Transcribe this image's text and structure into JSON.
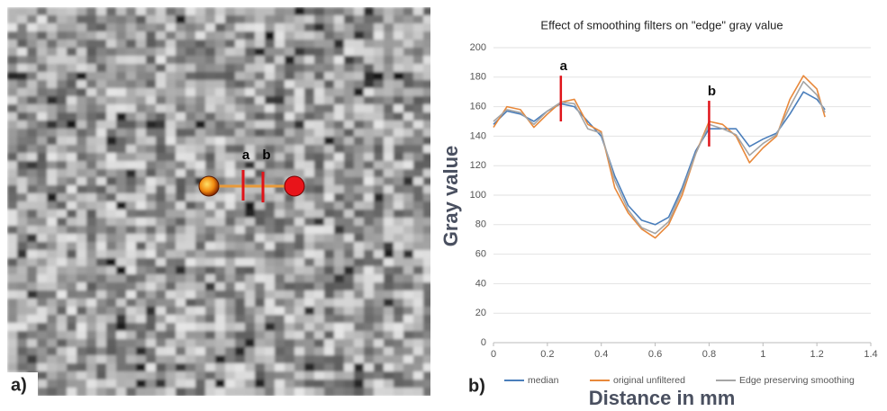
{
  "image": {
    "panel_label": "a)",
    "markers": [
      "a",
      "b"
    ]
  },
  "chart_data": {
    "type": "line",
    "panel_label": "b)",
    "title": "Effect of smoothing filters on \"edge\" gray value",
    "x_label": "Distance in mm",
    "y_label": "Gray value",
    "x": [
      0,
      0.05,
      0.1,
      0.15,
      0.2,
      0.25,
      0.3,
      0.35,
      0.4,
      0.45,
      0.5,
      0.55,
      0.6,
      0.65,
      0.7,
      0.75,
      0.8,
      0.85,
      0.9,
      0.95,
      1.0,
      1.05,
      1.1,
      1.15,
      1.2,
      1.23
    ],
    "series": [
      {
        "name": "median",
        "color": "#4a7ebb",
        "values": [
          148,
          157,
          155,
          150,
          157,
          162,
          160,
          150,
          140,
          113,
          93,
          83,
          80,
          85,
          105,
          130,
          145,
          145,
          145,
          133,
          138,
          142,
          155,
          170,
          165,
          158
        ]
      },
      {
        "name": "original unfiltered",
        "color": "#e8883a",
        "values": [
          146,
          160,
          158,
          146,
          155,
          163,
          165,
          148,
          143,
          105,
          88,
          77,
          71,
          80,
          100,
          128,
          150,
          148,
          140,
          122,
          132,
          140,
          165,
          181,
          172,
          153
        ]
      },
      {
        "name": "Edge preserving smoothing",
        "color": "#a5a5a5",
        "values": [
          150,
          158,
          156,
          148,
          157,
          163,
          162,
          145,
          142,
          110,
          90,
          78,
          74,
          82,
          103,
          128,
          148,
          145,
          141,
          127,
          135,
          141,
          160,
          177,
          168,
          156
        ]
      }
    ],
    "annotations": [
      {
        "text": "a",
        "x": 0.25,
        "y": [
          150,
          181
        ]
      },
      {
        "text": "b",
        "x": 0.8,
        "y": [
          133,
          164
        ]
      }
    ],
    "xlim": [
      0,
      1.4
    ],
    "xticks": [
      0,
      0.2,
      0.4,
      0.6,
      0.8,
      1,
      1.2,
      1.4
    ],
    "ylim": [
      0,
      200
    ],
    "yticks": [
      0,
      20,
      40,
      60,
      80,
      100,
      120,
      140,
      160,
      180,
      200
    ],
    "grid": true,
    "legend": "bottom"
  }
}
